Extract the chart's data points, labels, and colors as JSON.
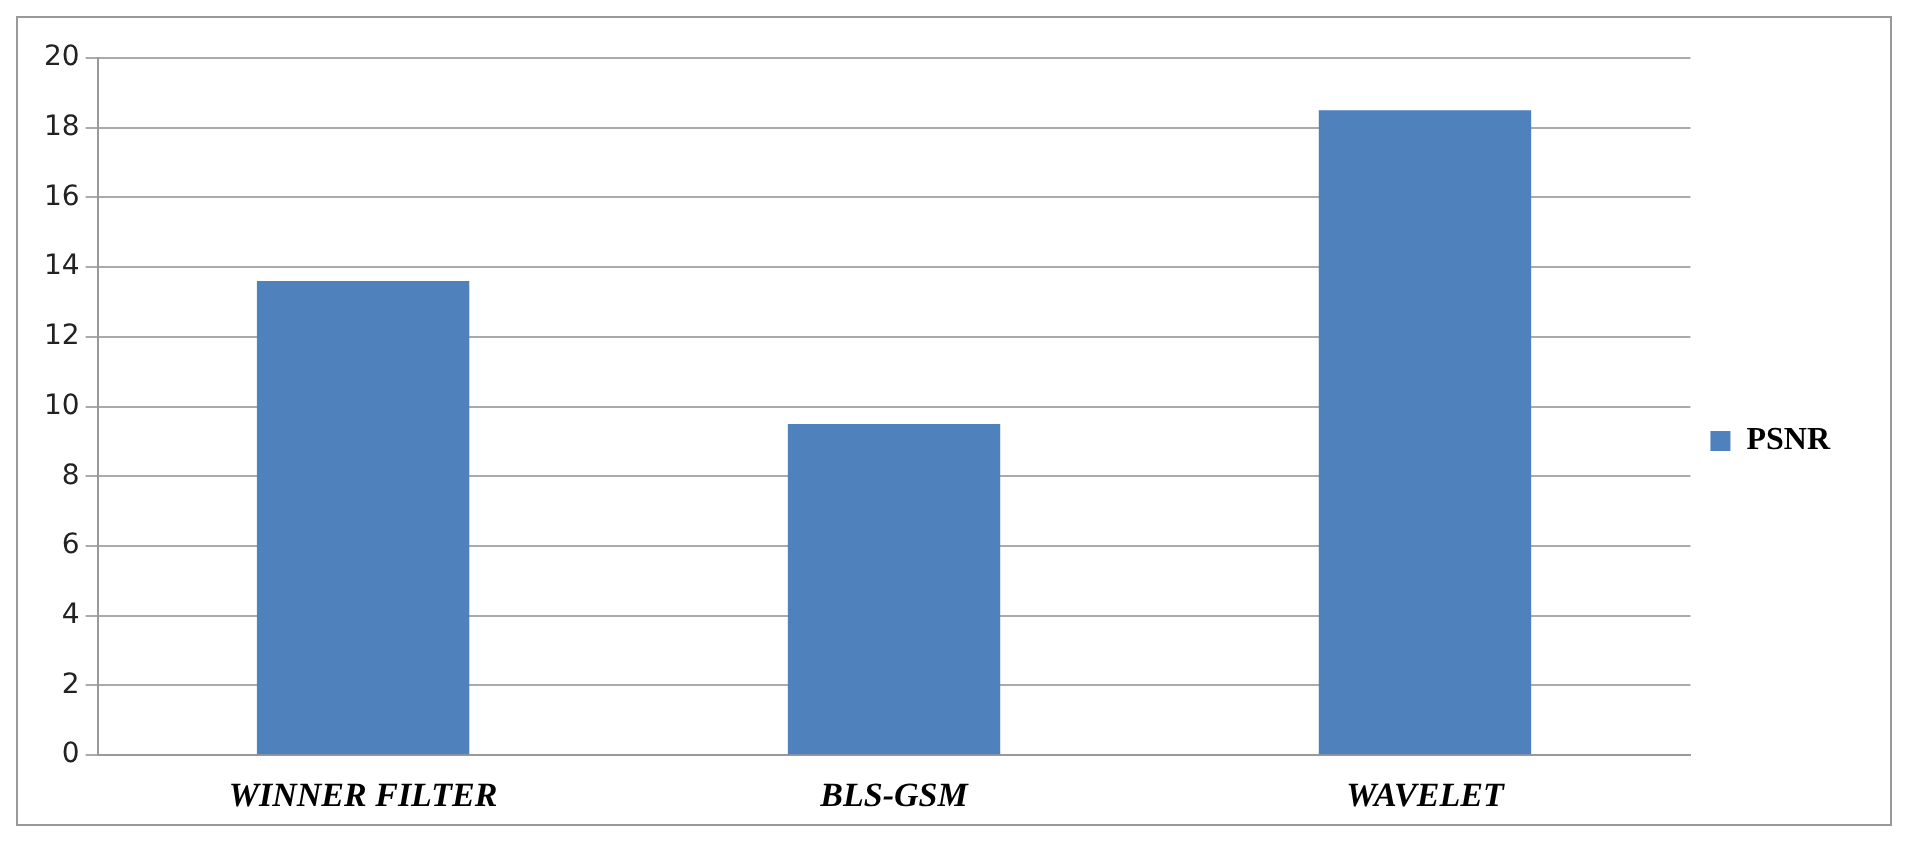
{
  "chart_data": {
    "type": "bar",
    "categories": [
      "WINNER FILTER",
      "BLS-GSM",
      "WAVELET"
    ],
    "series": [
      {
        "name": "PSNR",
        "color": "#4f81bd",
        "values": [
          13.6,
          9.5,
          18.5
        ]
      }
    ],
    "ylim": [
      0,
      20
    ],
    "yticks": [
      0,
      2,
      4,
      6,
      8,
      10,
      12,
      14,
      16,
      18,
      20
    ],
    "grid": "y",
    "legend": "right"
  }
}
